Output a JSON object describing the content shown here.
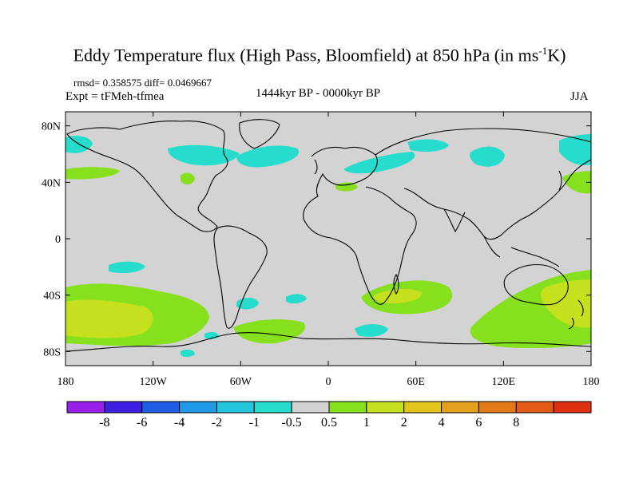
{
  "title_main": "Eddy Temperature flux (High Pass, Bloomfield) at 850 hPa (in ms",
  "title_sup": "-1",
  "title_tail": "K)",
  "stats": "rmsd= 0.358575 diff= 0.0469667",
  "expt": "Expt = tFMeh-tfmea",
  "period": "1444kyr BP - 0000kyr BP",
  "season": "JJA",
  "map": {
    "lon_range": [
      -180,
      180
    ],
    "lat_range": [
      -90,
      90
    ],
    "background_color": "#d3d3d3",
    "x_ticks": [
      "180",
      "120W",
      "60W",
      "0",
      "60E",
      "120E",
      "180"
    ],
    "y_ticks": [
      "80N",
      "40N",
      "0",
      "40S",
      "80S"
    ]
  },
  "colorbar": {
    "colors": [
      "#9a1fe8",
      "#3c1fe0",
      "#1f5fe6",
      "#1f9ae6",
      "#22c4dc",
      "#26dccc",
      "#d2d2d2",
      "#86e01e",
      "#c6e01e",
      "#e2c51c",
      "#e2a01b",
      "#e27a18",
      "#e25a16",
      "#e03012"
    ],
    "labels": [
      "-8",
      "-6",
      "-4",
      "-2",
      "-1",
      "-0.5",
      "0.5",
      "1",
      "2",
      "4",
      "6",
      "8"
    ]
  },
  "legend_colors": {
    "cyan_negative": "#26dccc",
    "green_positive": "#86e01e",
    "yellow_positive": "#c6e01e"
  }
}
